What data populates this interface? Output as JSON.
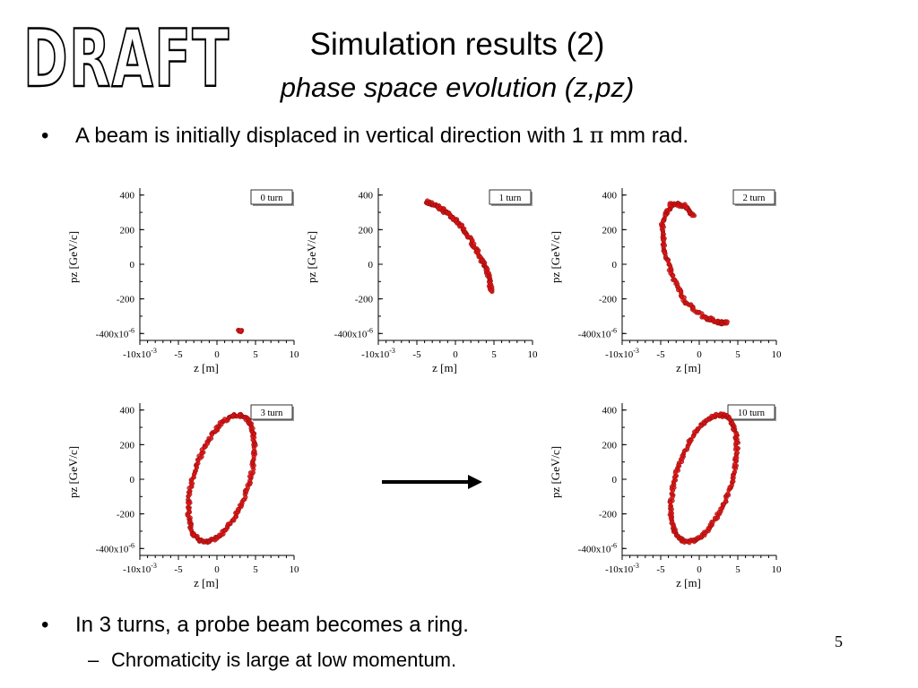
{
  "watermark": "DRAFT",
  "title": "Simulation results (2)",
  "subtitle": "phase space evolution (z,pz)",
  "bullets": {
    "b1_before": "A beam is initially displaced in vertical direction with 1",
    "b1_pi": "π",
    "b1_after": "mm rad.",
    "b2": "In 3 turns, a probe beam becomes a ring.",
    "sub1": "Chromaticity is large at low momentum."
  },
  "page_number": "5",
  "colors": {
    "points": "#e31212",
    "point_outline": "#8a1010",
    "axis": "#000000"
  },
  "chart_data": [
    {
      "type": "scatter",
      "label": "0 turn",
      "xlabel": "z [m]",
      "ylabel": "pz [GeV/c]",
      "xlim": [
        -10,
        10
      ],
      "ylim": [
        -440,
        440
      ],
      "xticks": [
        "-10x10-3",
        "-5",
        "0",
        "5",
        "10"
      ],
      "yticks": [
        "-400x10-6",
        "-200",
        "0",
        "200",
        "400"
      ],
      "x_unit_scale": "x10-3",
      "y_unit_scale": "x10-6",
      "shape": "point",
      "center": [
        3,
        -385
      ]
    },
    {
      "type": "scatter",
      "label": "1 turn",
      "xlabel": "z [m]",
      "ylabel": "pz [GeV/c]",
      "xlim": [
        -10,
        10
      ],
      "ylim": [
        -440,
        440
      ],
      "xticks": [
        "-10x10-3",
        "-5",
        "0",
        "5",
        "10"
      ],
      "yticks": [
        "-400x10-6",
        "-200",
        "0",
        "200",
        "400"
      ],
      "shape": "arc",
      "points": [
        [
          -3.8,
          360
        ],
        [
          -2.5,
          340
        ],
        [
          -1,
          295
        ],
        [
          0.5,
          230
        ],
        [
          2,
          140
        ],
        [
          3.4,
          30
        ],
        [
          4.3,
          -70
        ],
        [
          4.7,
          -160
        ]
      ]
    },
    {
      "type": "scatter",
      "label": "2 turn",
      "xlabel": "z [m]",
      "ylabel": "pz [GeV/c]",
      "xlim": [
        -10,
        10
      ],
      "ylim": [
        -440,
        440
      ],
      "xticks": [
        "-10x10-3",
        "-5",
        "0",
        "5",
        "10"
      ],
      "yticks": [
        "-400x10-6",
        "-200",
        "0",
        "200",
        "400"
      ],
      "shape": "arc",
      "points": [
        [
          -0.8,
          280
        ],
        [
          -2,
          340
        ],
        [
          -3.6,
          350
        ],
        [
          -4.8,
          250
        ],
        [
          -4.6,
          100
        ],
        [
          -3.6,
          -60
        ],
        [
          -1.8,
          -220
        ],
        [
          0.8,
          -310
        ],
        [
          2.6,
          -335
        ],
        [
          3.6,
          -340
        ]
      ]
    },
    {
      "type": "scatter",
      "label": "3 turn",
      "xlabel": "z [m]",
      "ylabel": "pz [GeV/c]",
      "xlim": [
        -10,
        10
      ],
      "ylim": [
        -440,
        440
      ],
      "xticks": [
        "-10x10-3",
        "-5",
        "0",
        "5",
        "10"
      ],
      "yticks": [
        "-400x10-6",
        "-200",
        "0",
        "200",
        "400"
      ],
      "shape": "ring",
      "ring": {
        "center": [
          0.6,
          5
        ],
        "semi_x": 3.6,
        "semi_y": 380,
        "tilt": 0.3
      }
    },
    {
      "type": "scatter",
      "label": "10 turn",
      "xlabel": "z [m]",
      "ylabel": "pz [GeV/c]",
      "xlim": [
        -10,
        10
      ],
      "ylim": [
        -440,
        440
      ],
      "xticks": [
        "-10x10-3",
        "-5",
        "0",
        "5",
        "10"
      ],
      "yticks": [
        "-400x10-6",
        "-200",
        "0",
        "200",
        "400"
      ],
      "shape": "ring",
      "ring": {
        "center": [
          0.6,
          5
        ],
        "semi_x": 3.6,
        "semi_y": 380,
        "tilt": 0.3
      }
    }
  ]
}
